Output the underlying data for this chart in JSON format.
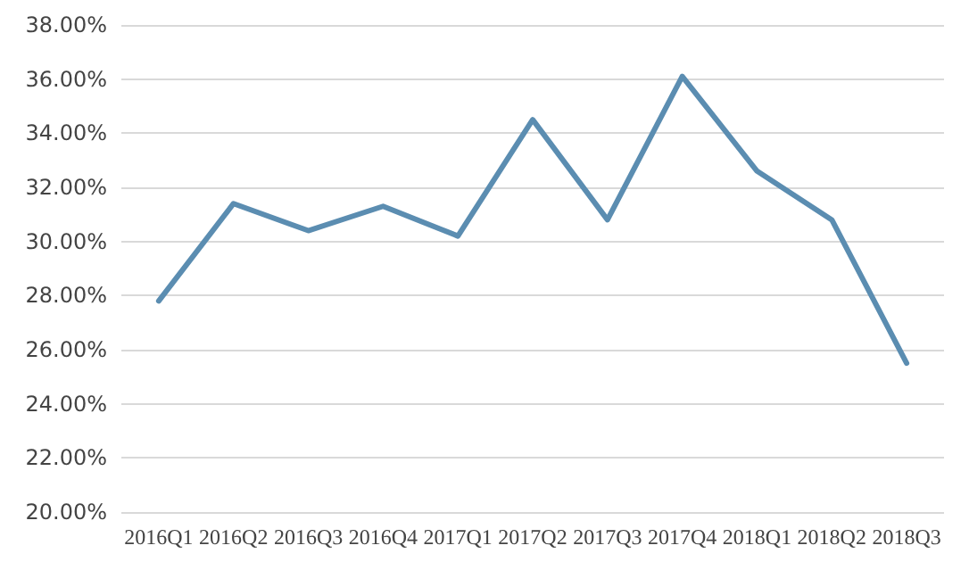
{
  "chart_data": {
    "type": "line",
    "categories": [
      "2016Q1",
      "2016Q2",
      "2016Q3",
      "2016Q4",
      "2017Q1",
      "2017Q2",
      "2017Q3",
      "2017Q4",
      "2018Q1",
      "2018Q2",
      "2018Q3"
    ],
    "series": [
      {
        "color": "#5b8db1",
        "values": [
          27.8,
          31.4,
          30.4,
          31.3,
          30.2,
          34.5,
          30.8,
          36.1,
          32.6,
          30.8,
          25.5
        ]
      }
    ],
    "ylim": [
      20,
      38
    ],
    "yticks": [
      {
        "value": 20,
        "label": "20.00%"
      },
      {
        "value": 22,
        "label": "22.00%"
      },
      {
        "value": 24,
        "label": "24.00%"
      },
      {
        "value": 26,
        "label": "26.00%"
      },
      {
        "value": 28,
        "label": "28.00%"
      },
      {
        "value": 30,
        "label": "30.00%"
      },
      {
        "value": 32,
        "label": "32.00%"
      },
      {
        "value": 34,
        "label": "34.00%"
      },
      {
        "value": 36,
        "label": "36.00%"
      },
      {
        "value": 38,
        "label": "38.00%"
      }
    ],
    "grid": "y",
    "marker": "none",
    "line_style": "solid"
  }
}
